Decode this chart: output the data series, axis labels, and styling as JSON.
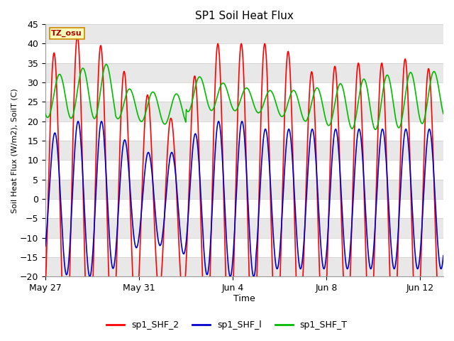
{
  "title": "SP1 Soil Heat Flux",
  "xlabel": "Time",
  "ylabel": "Soil Heat Flux (W/m2), SoilT (C)",
  "ylim": [
    -20,
    45
  ],
  "yticks": [
    -20,
    -15,
    -10,
    -5,
    0,
    5,
    10,
    15,
    20,
    25,
    30,
    35,
    40,
    45
  ],
  "x_tick_positions": [
    0,
    4,
    8,
    12,
    16
  ],
  "x_tick_labels": [
    "May 27",
    "May 31",
    "Jun 4",
    "Jun 8",
    "Jun 12"
  ],
  "colors": {
    "SHF_2": "#ff0000",
    "SHF_1": "#0000cc",
    "SHF_T": "#00bb00"
  },
  "legend_labels": [
    "sp1_SHF_2",
    "sp1_SHF_l",
    "sp1_SHF_T"
  ],
  "tz_label": "TZ_osu",
  "fig_bg": "#ffffff",
  "plot_bg": "#ffffff",
  "band_gray": "#e8e8e8",
  "num_days": 17
}
